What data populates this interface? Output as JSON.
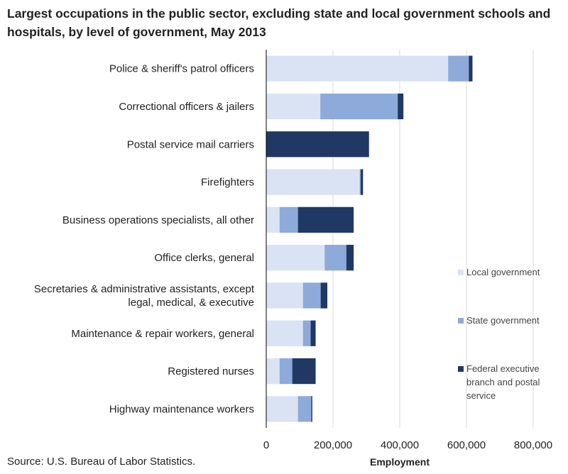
{
  "title": "Largest occupations in the public sector, excluding state and local government schools and hospitals, by level of government, May 2013",
  "source": "Source: U.S. Bureau of Labor Statistics.",
  "colors": {
    "local": "#dae3f3",
    "state": "#8eaadb",
    "federal": "#203864",
    "axis": "#000000",
    "grid": "#d9d9d9"
  },
  "chart_data": {
    "type": "bar",
    "orientation": "horizontal",
    "stacked": true,
    "categories": [
      [
        "Police & sheriff's patrol officers"
      ],
      [
        "Correctional officers & jailers"
      ],
      [
        "Postal service mail carriers"
      ],
      [
        "Firefighters"
      ],
      [
        "Business operations specialists, all other"
      ],
      [
        "Office clerks, general"
      ],
      [
        "Secretaries & administrative assistants, except",
        "legal, medical, & executive"
      ],
      [
        "Maintenance & repair workers, general"
      ],
      [
        "Registered nurses"
      ],
      [
        "Highway maintenance workers"
      ]
    ],
    "series": [
      {
        "name": "Local government",
        "key": "local",
        "values": [
          545000,
          162000,
          0,
          280000,
          40000,
          175000,
          110000,
          110000,
          40000,
          95000
        ]
      },
      {
        "name": "State government",
        "key": "state",
        "values": [
          62000,
          232000,
          0,
          3000,
          55000,
          65000,
          53000,
          23000,
          38000,
          40000
        ]
      },
      {
        "name": "Federal executive branch and postal service",
        "key": "federal",
        "legend_lines": [
          "Federal executive",
          "branch and postal",
          "service"
        ],
        "values": [
          11000,
          17000,
          308000,
          7000,
          167000,
          22000,
          20000,
          15000,
          70000,
          3000
        ]
      }
    ],
    "xlabel": "Employment",
    "ylabel": "",
    "xlim": [
      0,
      800000
    ],
    "xticks": [
      0,
      200000,
      400000,
      600000,
      800000
    ],
    "xtick_labels": [
      "0",
      "200,000",
      "400,000",
      "600,000",
      "800,000"
    ],
    "grid": "vertical",
    "legend": "right"
  }
}
